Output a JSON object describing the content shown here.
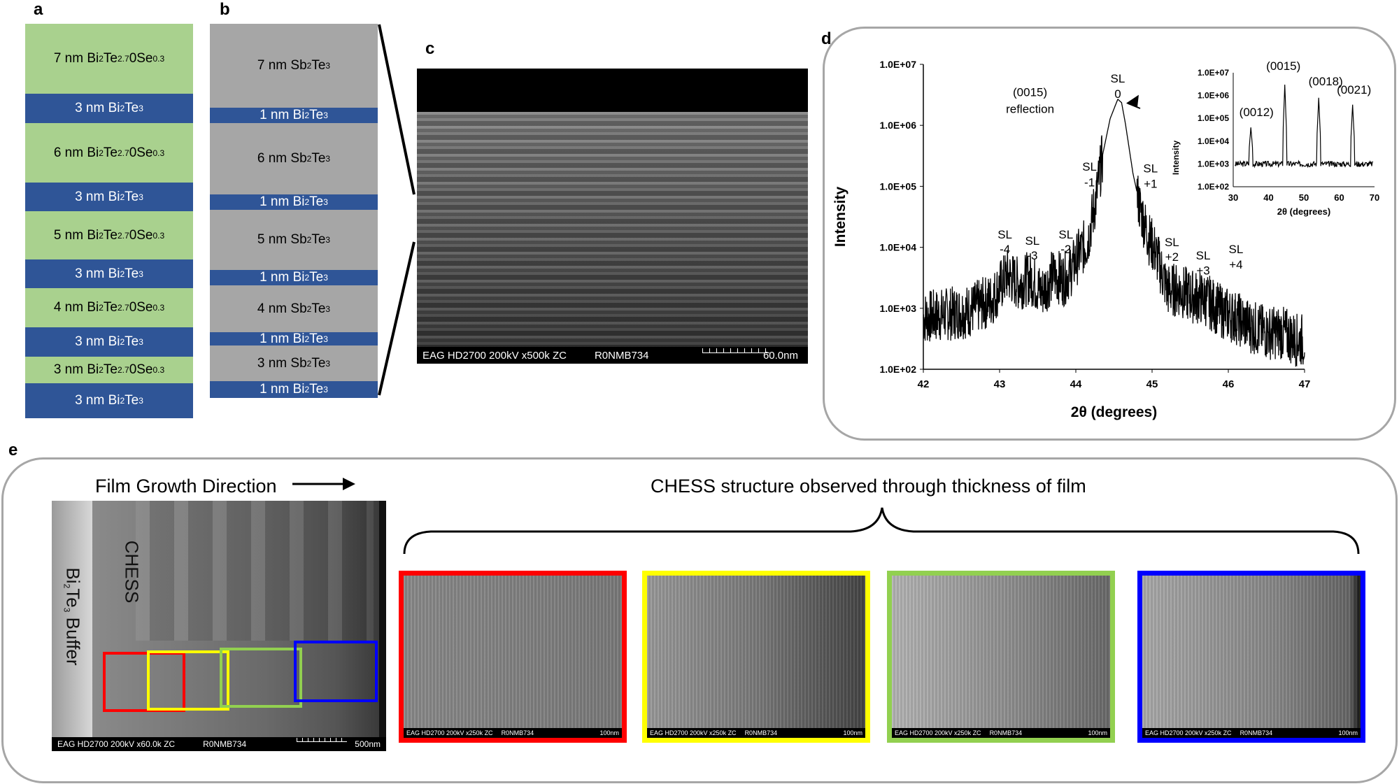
{
  "panels": {
    "a": "a",
    "b": "b",
    "c": "c",
    "d": "d",
    "e": "e"
  },
  "panel_a": {
    "layers": [
      {
        "thick": "7 nm",
        "base": "Bi",
        "s1": "2",
        "mid": "Te",
        "s2": "2.7",
        "tail": "0Se",
        "s3": "0.3",
        "color": "green"
      },
      {
        "thick": "3 nm",
        "base": "Bi",
        "s1": "2",
        "mid": "Te",
        "s2": "3",
        "tail": "",
        "s3": "",
        "color": "blue"
      },
      {
        "thick": "6 nm",
        "base": "Bi",
        "s1": "2",
        "mid": "Te",
        "s2": "2.7",
        "tail": "0Se",
        "s3": "0.3",
        "color": "green"
      },
      {
        "thick": "3 nm",
        "base": "Bi",
        "s1": "2",
        "mid": "Te",
        "s2": "3",
        "tail": "",
        "s3": "",
        "color": "blue"
      },
      {
        "thick": "5 nm",
        "base": "Bi",
        "s1": "2",
        "mid": "Te",
        "s2": "2.7",
        "tail": "0Se",
        "s3": "0.3",
        "color": "green"
      },
      {
        "thick": "3 nm",
        "base": "Bi",
        "s1": "2",
        "mid": "Te",
        "s2": "3",
        "tail": "",
        "s3": "",
        "color": "blue"
      },
      {
        "thick": "4 nm",
        "base": "Bi",
        "s1": "2",
        "mid": "Te",
        "s2": "2.7",
        "tail": "0Se",
        "s3": "0.3",
        "color": "green"
      },
      {
        "thick": "3 nm",
        "base": "Bi",
        "s1": "2",
        "mid": "Te",
        "s2": "3",
        "tail": "",
        "s3": "",
        "color": "blue"
      },
      {
        "thick": "3 nm",
        "base": "Bi",
        "s1": "2",
        "mid": "Te",
        "s2": "2.7",
        "tail": "0Se",
        "s3": "0.3",
        "color": "green"
      },
      {
        "thick": "3 nm",
        "base": "Bi",
        "s1": "2",
        "mid": "Te",
        "s2": "3",
        "tail": "",
        "s3": "",
        "color": "blue"
      }
    ]
  },
  "panel_b": {
    "layers": [
      {
        "thick": "7 nm",
        "base": "Sb",
        "s1": "2",
        "mid": "Te",
        "s2": "3",
        "color": "gray"
      },
      {
        "thick": "1 nm",
        "base": "Bi",
        "s1": "2",
        "mid": "Te",
        "s2": "3",
        "color": "blue"
      },
      {
        "thick": "6 nm",
        "base": "Sb",
        "s1": "2",
        "mid": "Te",
        "s2": "3",
        "color": "gray"
      },
      {
        "thick": "1 nm",
        "base": "Bi",
        "s1": "2",
        "mid": "Te",
        "s2": "3",
        "color": "blue"
      },
      {
        "thick": "5 nm",
        "base": "Sb",
        "s1": "2",
        "mid": "Te",
        "s2": "3",
        "color": "gray"
      },
      {
        "thick": "1 nm",
        "base": "Bi",
        "s1": "2",
        "mid": "Te",
        "s2": "3",
        "color": "blue"
      },
      {
        "thick": "4 nm",
        "base": "Sb",
        "s1": "2",
        "mid": "Te",
        "s2": "3",
        "color": "gray"
      },
      {
        "thick": "1 nm",
        "base": "Bi",
        "s1": "2",
        "mid": "Te",
        "s2": "3",
        "color": "blue"
      },
      {
        "thick": "3 nm",
        "base": "Sb",
        "s1": "2",
        "mid": "Te",
        "s2": "3",
        "color": "gray"
      },
      {
        "thick": "1 nm",
        "base": "Bi",
        "s1": "2",
        "mid": "Te",
        "s2": "3",
        "color": "blue"
      }
    ]
  },
  "panel_c": {
    "caption_left": "EAG HD2700  200kV  x500k  ZC",
    "caption_id": "R0NMB734",
    "scale": "60.0nm"
  },
  "chart_data": {
    "type": "line",
    "log_y": true,
    "xlabel": "2θ (degrees)",
    "ylabel": "Intensity",
    "xlim": [
      42,
      47
    ],
    "ylim": [
      100,
      10000000
    ],
    "x_ticks": [
      "42",
      "43",
      "44",
      "45",
      "46",
      "47"
    ],
    "y_ticks": [
      "1.0E+02",
      "1.0E+03",
      "1.0E+04",
      "1.0E+05",
      "1.0E+06",
      "1.0E+07"
    ],
    "series": [
      {
        "x": [
          42.0,
          42.3,
          42.6,
          42.9,
          43.1,
          43.25,
          43.4,
          43.55,
          43.7,
          43.85,
          43.95,
          44.05,
          44.15,
          44.25,
          44.35,
          44.45,
          44.55,
          44.6,
          44.65,
          44.75,
          44.85,
          44.95,
          45.05,
          45.2,
          45.35,
          45.5,
          45.7,
          45.9,
          46.1,
          46.3,
          46.5,
          46.7,
          46.9,
          47.0
        ],
        "y": [
          700,
          800,
          900,
          1400,
          3500,
          2500,
          3200,
          1800,
          3500,
          3000,
          4500,
          8000,
          12000,
          50000,
          300000,
          1200000,
          2500000,
          2200000,
          1000000,
          150000,
          40000,
          15000,
          8000,
          2000,
          2000,
          1600,
          1400,
          900,
          700,
          500,
          400,
          400,
          300,
          300
        ]
      }
    ],
    "annotations": [
      {
        "text": "(0015)",
        "x": 43.4,
        "y": 3000000
      },
      {
        "text": "reflection",
        "x": 43.4,
        "y": 1600000
      },
      {
        "text": "SL",
        "x": 44.55,
        "y": 5000000
      },
      {
        "text": "0",
        "x": 44.55,
        "y": 2800000
      },
      {
        "text": "SL",
        "x": 44.18,
        "y": 180000
      },
      {
        "text": "-1",
        "x": 44.18,
        "y": 100000
      },
      {
        "text": "SL",
        "x": 44.98,
        "y": 170000
      },
      {
        "text": "+1",
        "x": 44.98,
        "y": 95000
      },
      {
        "text": "SL",
        "x": 43.87,
        "y": 14000
      },
      {
        "text": "-2",
        "x": 43.87,
        "y": 8000
      },
      {
        "text": "SL",
        "x": 43.43,
        "y": 11000
      },
      {
        "text": "-3",
        "x": 43.43,
        "y": 6300
      },
      {
        "text": "SL",
        "x": 43.07,
        "y": 14000
      },
      {
        "text": "-4",
        "x": 43.07,
        "y": 8000
      },
      {
        "text": "SL",
        "x": 45.26,
        "y": 10500
      },
      {
        "text": "+2",
        "x": 45.26,
        "y": 6000
      },
      {
        "text": "SL",
        "x": 45.67,
        "y": 6300
      },
      {
        "text": "+3",
        "x": 45.67,
        "y": 3600
      },
      {
        "text": "SL",
        "x": 46.1,
        "y": 8000
      },
      {
        "text": "+4",
        "x": 46.1,
        "y": 4500
      }
    ],
    "inset": {
      "xlabel": "2θ (degrees)",
      "ylabel": "Intensity",
      "x_ticks": [
        "30",
        "40",
        "50",
        "60",
        "70"
      ],
      "y_ticks": [
        "1.0E+02",
        "1.0E+03",
        "1.0E+04",
        "1.0E+05",
        "1.0E+06",
        "1.0E+07"
      ],
      "xlim": [
        30,
        70
      ],
      "ylim": [
        100,
        10000000
      ],
      "peaks": [
        {
          "label": "(0012)",
          "x": 35,
          "y": 40000
        },
        {
          "label": "(0015)",
          "x": 44.6,
          "y": 3000000
        },
        {
          "label": "(0018)",
          "x": 54.2,
          "y": 800000
        },
        {
          "label": "(0021)",
          "x": 63.8,
          "y": 400000
        }
      ]
    }
  },
  "panel_e": {
    "growth_label": "Film Growth Direction",
    "buffer_label": "Buffer",
    "buffer_formula": {
      "base": "Bi",
      "s1": "2",
      "mid": "Te",
      "s2": "3"
    },
    "chess_label": "CHESS",
    "observed_label": "CHESS structure observed through thickness of film",
    "main_caption_left": "EAG HD2700  200kV  x60.0k  ZC",
    "main_caption_id": "R0NMB734",
    "main_scale": "500nm",
    "box_colors": [
      "#ff0000",
      "#ffff00",
      "#92d050",
      "#0000ff"
    ],
    "sub_caption_left": "EAG HD2700  200kV  x250k  ZC",
    "sub_caption_id": "R0NMB734",
    "sub_scale": "100nm"
  }
}
